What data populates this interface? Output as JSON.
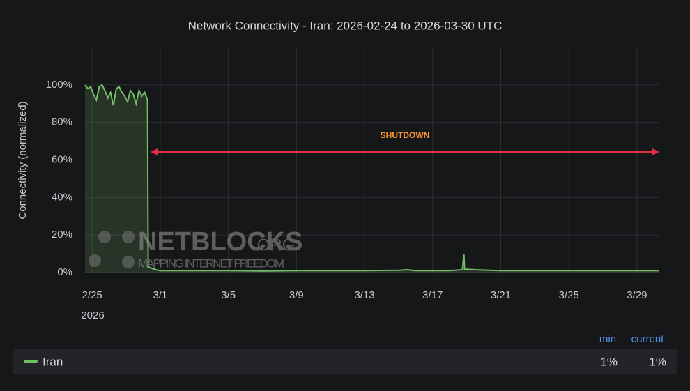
{
  "chart_data": {
    "type": "line",
    "title": "Network Connectivity - Iran: 2026-02-24 to 2026-03-30 UTC",
    "y_axis_label": "Connectivity (normalized)",
    "x_axis_year": "2026",
    "annotation": "SHUTDOWN",
    "watermark": {
      "title": "NETBLOCKS",
      "suffix": ".ORG",
      "tagline": "MAPPING INTERNET FREEDOM"
    },
    "xlim": [
      "2026-02-24T14:00",
      "2026-03-30T07:30"
    ],
    "xticks": [
      {
        "value": "2026-02-25T00:00",
        "label": "2/25"
      },
      {
        "value": "2026-03-01T00:00",
        "label": "3/1"
      },
      {
        "value": "2026-03-05T00:00",
        "label": "3/5"
      },
      {
        "value": "2026-03-09T00:00",
        "label": "3/9"
      },
      {
        "value": "2026-03-13T00:00",
        "label": "3/13"
      },
      {
        "value": "2026-03-17T00:00",
        "label": "3/17"
      },
      {
        "value": "2026-03-21T00:00",
        "label": "3/21"
      },
      {
        "value": "2026-03-25T00:00",
        "label": "3/25"
      },
      {
        "value": "2026-03-29T00:00",
        "label": "3/29"
      }
    ],
    "ylim": [
      0,
      120
    ],
    "yticks": [
      {
        "value": 0,
        "label": "0%"
      },
      {
        "value": 20,
        "label": "20%"
      },
      {
        "value": 40,
        "label": "40%"
      },
      {
        "value": 60,
        "label": "60%"
      },
      {
        "value": 80,
        "label": "80%"
      },
      {
        "value": 100,
        "label": "100%"
      }
    ],
    "grid": true,
    "x": [
      "2026-02-24T14:00",
      "2026-02-24T18:00",
      "2026-02-24T22:00",
      "2026-02-25T02:00",
      "2026-02-25T06:00",
      "2026-02-25T10:00",
      "2026-02-25T14:00",
      "2026-02-25T18:00",
      "2026-02-25T22:00",
      "2026-02-26T02:00",
      "2026-02-26T06:00",
      "2026-02-26T10:00",
      "2026-02-26T14:00",
      "2026-02-26T18:00",
      "2026-02-26T22:00",
      "2026-02-27T02:00",
      "2026-02-27T06:00",
      "2026-02-27T10:00",
      "2026-02-27T14:00",
      "2026-02-27T18:00",
      "2026-02-27T22:00",
      "2026-02-28T02:00",
      "2026-02-28T06:00",
      "2026-02-28T07:00",
      "2026-02-28T18:00",
      "2026-03-01T00:00",
      "2026-03-03T00:00",
      "2026-03-05T00:00",
      "2026-03-07T00:00",
      "2026-03-09T00:00",
      "2026-03-11T00:00",
      "2026-03-13T00:00",
      "2026-03-15T00:00",
      "2026-03-15T12:00",
      "2026-03-16T00:00",
      "2026-03-18T00:00",
      "2026-03-18T18:00",
      "2026-03-18T20:00",
      "2026-03-18T21:00",
      "2026-03-19T00:00",
      "2026-03-19T12:00",
      "2026-03-21T00:00",
      "2026-03-23T00:00",
      "2026-03-25T00:00",
      "2026-03-27T00:00",
      "2026-03-29T00:00",
      "2026-03-30T07:30"
    ],
    "series": [
      {
        "name": "Iran",
        "color": "#73bf69",
        "values": [
          100,
          98,
          99,
          95,
          92,
          99,
          100,
          97,
          93,
          96,
          89,
          98,
          99,
          96,
          94,
          91,
          97,
          95,
          90,
          97,
          94,
          96,
          92,
          3,
          1.5,
          1,
          1,
          1,
          0.8,
          1,
          1,
          1,
          1.2,
          1.5,
          1,
          1,
          1.5,
          10,
          1.5,
          1.8,
          1.5,
          1,
          1,
          1,
          1,
          1,
          1
        ]
      }
    ],
    "legend_stat_headers": [
      "min",
      "current"
    ],
    "legend_stats": [
      "1%",
      "1%"
    ]
  }
}
